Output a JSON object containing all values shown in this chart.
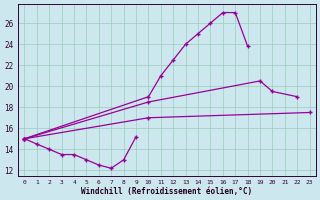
{
  "bg_color": "#cce8ee",
  "grid_color": "#99ccbb",
  "line_color": "#990099",
  "xlim_min": -0.5,
  "xlim_max": 23.5,
  "ylim_min": 11.5,
  "ylim_max": 27.8,
  "xticks": [
    0,
    1,
    2,
    3,
    4,
    5,
    6,
    7,
    8,
    9,
    10,
    11,
    12,
    13,
    14,
    15,
    16,
    17,
    18,
    19,
    20,
    21,
    22,
    23
  ],
  "yticks": [
    12,
    14,
    16,
    18,
    20,
    22,
    24,
    26
  ],
  "xlabel": "Windchill (Refroidissement éolien,°C)",
  "line1_x": [
    0,
    1,
    2,
    3,
    4,
    5,
    6,
    7,
    8,
    9
  ],
  "line1_y": [
    15.0,
    14.5,
    14.0,
    13.5,
    13.5,
    13.0,
    12.5,
    12.2,
    13.0,
    15.2
  ],
  "line2_x": [
    0,
    10,
    11,
    12,
    13,
    14,
    15,
    16,
    17,
    18
  ],
  "line2_y": [
    15.0,
    19.0,
    21.0,
    22.5,
    24.0,
    25.0,
    26.0,
    27.0,
    27.0,
    23.8
  ],
  "line3_x": [
    0,
    10,
    19,
    20,
    22
  ],
  "line3_y": [
    15.0,
    18.5,
    20.5,
    19.5,
    19.0
  ],
  "line4_x": [
    0,
    10,
    23
  ],
  "line4_y": [
    15.0,
    17.0,
    17.5
  ]
}
